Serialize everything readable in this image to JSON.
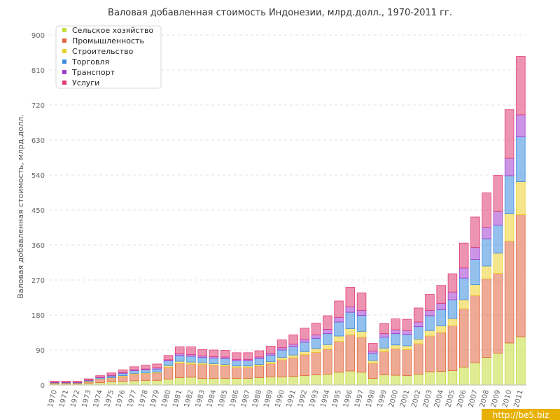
{
  "chart_data": {
    "type": "bar",
    "stacked": true,
    "title": "Валовая добавленная стоимость Индонезии, млрд.долл., 1970-2011 гг.",
    "xlabel": "",
    "ylabel": "Валовая добавленная стоимость, млрд.долл.",
    "ylim": [
      0,
      900
    ],
    "yticks": [
      0,
      90,
      180,
      270,
      360,
      450,
      540,
      630,
      720,
      810,
      900
    ],
    "grid": true,
    "legend_position": "top-left",
    "categories": [
      "1970",
      "1971",
      "1972",
      "1973",
      "1974",
      "1975",
      "1976",
      "1977",
      "1978",
      "1979",
      "1980",
      "1981",
      "1982",
      "1983",
      "1984",
      "1985",
      "1986",
      "1987",
      "1988",
      "1989",
      "1990",
      "1991",
      "1992",
      "1993",
      "1994",
      "1995",
      "1996",
      "1997",
      "1998",
      "1999",
      "2000",
      "2001",
      "2002",
      "2003",
      "2004",
      "2005",
      "2006",
      "2007",
      "2008",
      "2009",
      "2010",
      "2011"
    ],
    "series": [
      {
        "name": "Сельское хозяйство",
        "color": "#c4dc3c",
        "values": [
          3,
          3,
          3,
          5,
          6,
          8,
          9,
          11,
          12,
          12,
          15,
          19,
          20,
          17,
          17,
          17,
          17,
          17,
          19,
          21,
          21,
          22,
          24,
          26,
          28,
          33,
          36,
          33,
          17,
          26,
          25,
          24,
          28,
          34,
          35,
          37,
          46,
          57,
          71,
          82,
          108,
          124
        ]
      },
      {
        "name": "Промышленность",
        "color": "#e0643c",
        "values": [
          2,
          2,
          2,
          4,
          9,
          10,
          13,
          17,
          17,
          19,
          31,
          37,
          34,
          36,
          34,
          32,
          28,
          28,
          30,
          34,
          44,
          48,
          54,
          58,
          64,
          79,
          93,
          90,
          39,
          60,
          68,
          67,
          78,
          92,
          100,
          115,
          150,
          173,
          202,
          205,
          262,
          314
        ]
      },
      {
        "name": "Строительство",
        "color": "#ecd02c",
        "values": [
          0.5,
          0.5,
          0.5,
          1,
          1,
          1,
          2,
          2,
          2,
          2,
          4,
          5,
          5,
          4,
          4,
          4,
          4,
          4,
          4,
          5,
          6,
          7,
          8,
          10,
          12,
          14,
          16,
          15,
          7,
          9,
          10,
          10,
          12,
          14,
          17,
          19,
          23,
          28,
          33,
          52,
          70,
          85
        ]
      },
      {
        "name": "Торговля",
        "color": "#3c8ce0",
        "values": [
          1,
          1,
          1,
          2,
          3,
          4,
          6,
          7,
          8,
          8,
          12,
          15,
          15,
          14,
          14,
          15,
          13,
          13,
          15,
          17,
          19,
          21,
          24,
          26,
          28,
          36,
          42,
          41,
          18,
          28,
          29,
          29,
          32,
          38,
          42,
          48,
          56,
          65,
          70,
          72,
          98,
          115
        ]
      },
      {
        "name": "Транспорт",
        "color": "#a03cd0",
        "values": [
          1,
          1,
          1,
          1,
          1,
          2,
          2,
          2,
          2,
          3,
          3,
          4,
          4,
          4,
          4,
          4,
          4,
          4,
          4,
          5,
          6,
          7,
          8,
          9,
          11,
          12,
          14,
          13,
          6,
          9,
          10,
          10,
          12,
          14,
          16,
          20,
          26,
          31,
          30,
          35,
          45,
          57
        ]
      },
      {
        "name": "Услуги",
        "color": "#e03c74",
        "values": [
          2,
          2,
          2,
          3,
          4,
          6,
          7,
          8,
          10,
          10,
          11,
          18,
          20,
          16,
          17,
          17,
          17,
          17,
          16,
          18,
          20,
          24,
          28,
          30,
          35,
          42,
          50,
          45,
          20,
          26,
          28,
          29,
          36,
          41,
          46,
          47,
          64,
          78,
          88,
          93,
          125,
          150
        ]
      }
    ]
  },
  "watermark": "http://be5.biz"
}
